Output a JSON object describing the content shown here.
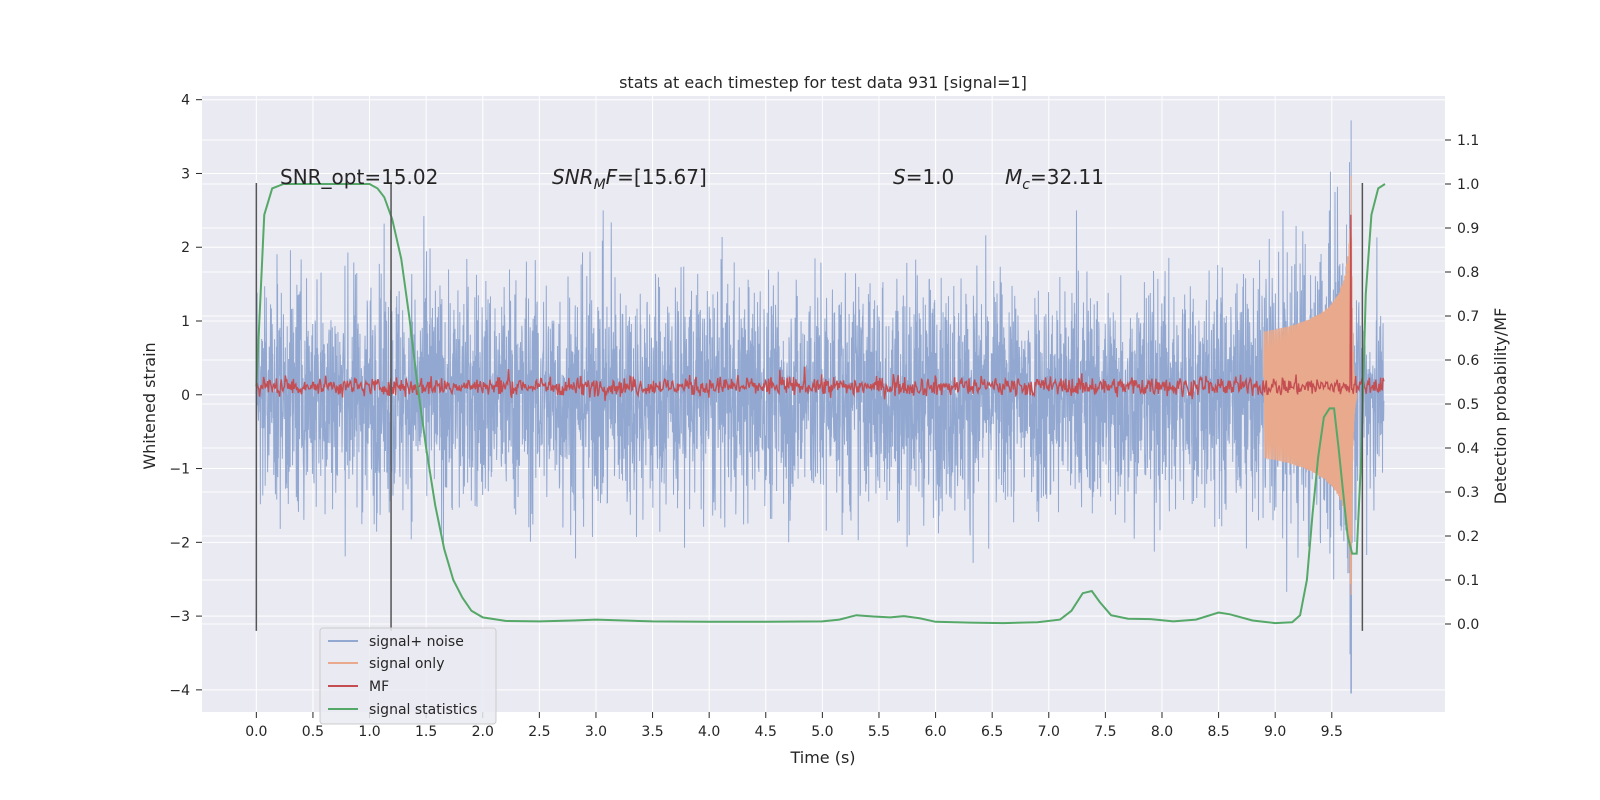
{
  "chart_data": {
    "type": "line",
    "title": "stats at each timestep for test data 931 [signal=1]",
    "xlabel": "Time (s)",
    "ylabel_left": "Whitened strain",
    "ylabel_right": "Detection probability/MF",
    "xlim": [
      -0.48,
      10.5
    ],
    "ylim_left": [
      -4.3,
      4.05
    ],
    "ylim_right": [
      -0.2,
      1.2
    ],
    "x_ticks": [
      "0.0",
      "0.5",
      "1.0",
      "1.5",
      "2.0",
      "2.5",
      "3.0",
      "3.5",
      "4.0",
      "4.5",
      "5.0",
      "5.5",
      "6.0",
      "6.5",
      "7.0",
      "7.5",
      "8.0",
      "8.5",
      "9.0",
      "9.5"
    ],
    "y_left_ticks": [
      "4",
      "3",
      "2",
      "1",
      "0",
      "−1",
      "−2",
      "−3",
      "−4"
    ],
    "y_right_ticks": [
      "1.1",
      "1.0",
      "0.9",
      "0.8",
      "0.7",
      "0.6",
      "0.5",
      "0.4",
      "0.3",
      "0.2",
      "0.1",
      "0.0"
    ],
    "grid": true,
    "legend_placement": "lower-left",
    "annotations": {
      "snr_opt": "SNR_opt=15.02",
      "snr_mf_name": "SNR",
      "snr_mf_sub": "M",
      "snr_mf_f": "F",
      "snr_mf_value": "=[15.67]",
      "s_name": "S",
      "s_value": "=1.0",
      "mc_name": "M",
      "mc_sub": "c",
      "mc_value": "=32.11"
    },
    "vertical_markers": [
      0.0,
      1.19,
      9.77
    ],
    "series": [
      {
        "name": "signal+ noise",
        "color": "#92a8d1",
        "axis": "left",
        "description_range": [
          -4.05,
          3.72
        ],
        "peak_time": 9.67,
        "noise_band": {
          "typical_amplitude": 1.3,
          "max_excursion": 2.5,
          "t_start": 0.0,
          "t_end": 9.96
        }
      },
      {
        "name": "signal only",
        "color": "#e8a98c",
        "axis": "left",
        "chirp": {
          "t_start": 8.9,
          "t_merge": 9.67,
          "peak_amplitude": 3.2,
          "ringdown_end": 9.72
        }
      },
      {
        "name": "MF",
        "color": "#c44e52",
        "axis": "right",
        "baseline": 0.54,
        "peak": {
          "x": 9.67,
          "y": 0.93
        },
        "t_start": 0.0,
        "t_end": 9.96
      },
      {
        "name": "signal statistics",
        "color": "#55a868",
        "axis": "right",
        "x": [
          0.0,
          0.07,
          0.14,
          0.24,
          0.35,
          0.5,
          0.7,
          0.9,
          1.0,
          1.07,
          1.13,
          1.2,
          1.28,
          1.35,
          1.42,
          1.5,
          1.58,
          1.66,
          1.74,
          1.82,
          1.9,
          2.0,
          2.2,
          2.5,
          2.8,
          3.0,
          3.5,
          4.0,
          4.5,
          5.0,
          5.15,
          5.3,
          5.45,
          5.6,
          5.72,
          5.86,
          6.0,
          6.3,
          6.6,
          6.9,
          7.1,
          7.2,
          7.3,
          7.38,
          7.45,
          7.55,
          7.7,
          7.9,
          8.1,
          8.3,
          8.5,
          8.6,
          8.8,
          9.0,
          9.15,
          9.22,
          9.28,
          9.33,
          9.38,
          9.43,
          9.48,
          9.52,
          9.56,
          9.6,
          9.64,
          9.68,
          9.72,
          9.76,
          9.8,
          9.85,
          9.91,
          9.97
        ],
        "y": [
          0.54,
          0.93,
          0.99,
          1.0,
          1.0,
          1.0,
          1.0,
          1.0,
          1.0,
          0.99,
          0.97,
          0.92,
          0.83,
          0.7,
          0.55,
          0.4,
          0.27,
          0.17,
          0.1,
          0.06,
          0.03,
          0.015,
          0.007,
          0.006,
          0.008,
          0.01,
          0.006,
          0.005,
          0.005,
          0.006,
          0.01,
          0.02,
          0.017,
          0.015,
          0.018,
          0.013,
          0.005,
          0.003,
          0.002,
          0.004,
          0.01,
          0.03,
          0.07,
          0.075,
          0.05,
          0.02,
          0.012,
          0.011,
          0.006,
          0.01,
          0.026,
          0.022,
          0.008,
          0.002,
          0.004,
          0.02,
          0.1,
          0.25,
          0.38,
          0.47,
          0.49,
          0.49,
          0.4,
          0.3,
          0.2,
          0.16,
          0.16,
          0.38,
          0.75,
          0.93,
          0.99,
          1.0
        ]
      }
    ]
  }
}
